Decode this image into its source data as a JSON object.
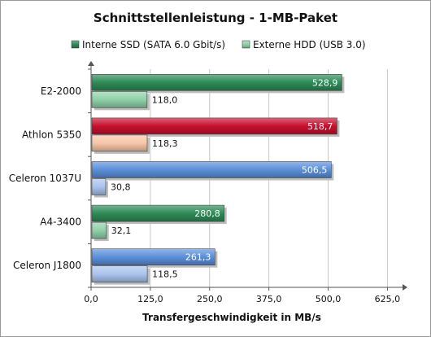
{
  "chart_data": {
    "type": "bar",
    "orientation": "horizontal",
    "title": "Schnittstellenleistung - 1-MB-Paket",
    "xlabel": "Transfergeschwindigkeit in MB/s",
    "ylabel": "",
    "xlim": [
      0,
      650
    ],
    "ticks": [
      "0,0",
      "125,0",
      "250,0",
      "375,0",
      "500,0",
      "625,0"
    ],
    "tick_values": [
      0,
      125,
      250,
      375,
      500,
      625
    ],
    "grid": "vertical",
    "legend_position": "top",
    "categories": [
      "E2-2000",
      "Athlon 5350",
      "Celeron 1037U",
      "A4-3400",
      "Celeron J1800"
    ],
    "series": [
      {
        "name": "Interne SSD (SATA 6.0 Gbit/s)",
        "values": [
          528.9,
          518.7,
          506.5,
          280.8,
          261.3
        ],
        "labels": [
          "528,9",
          "518,7",
          "506,5",
          "280,8",
          "261,3"
        ]
      },
      {
        "name": "Externe HDD (USB 3.0)",
        "values": [
          118.0,
          118.3,
          30.8,
          32.1,
          118.5
        ],
        "labels": [
          "118,0",
          "118,3",
          "30,8",
          "32,1",
          "118,5"
        ]
      }
    ],
    "colors": {
      "series1_default": "#2e8b57",
      "series2_default": "#8fd1a8",
      "category_overrides": {
        "Athlon 5350": {
          "series1": "#c8102e",
          "series2": "#f7c6a8"
        },
        "Celeron 1037U": {
          "series1": "#5b8fd9",
          "series2": "#a9c4ee"
        },
        "Celeron J1800": {
          "series1": "#5b8fd9",
          "series2": "#a9c4ee"
        }
      }
    }
  }
}
